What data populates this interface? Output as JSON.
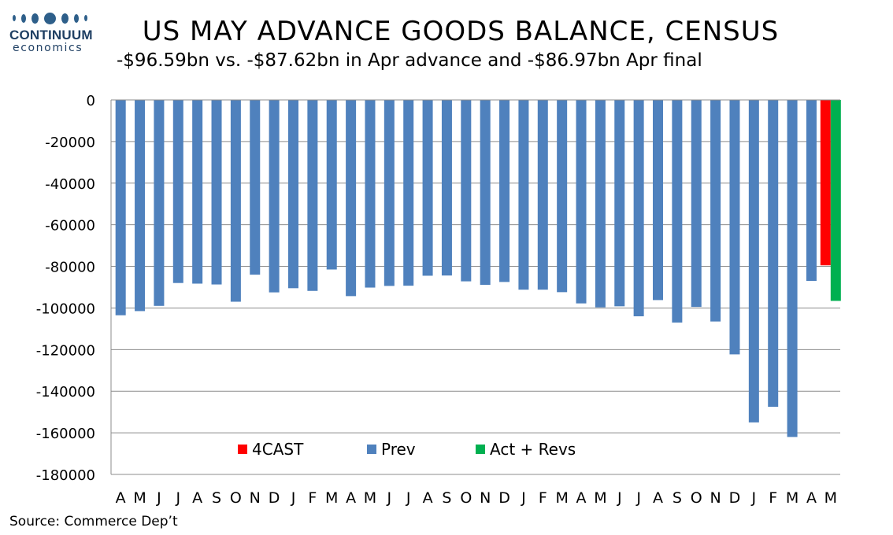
{
  "logo": {
    "name": "CONTINUUM",
    "sub": "economics"
  },
  "chart_data": {
    "type": "bar",
    "title": "US MAY ADVANCE GOODS BALANCE, CENSUS",
    "subtitle": "-$96.59bn vs. -$87.62bn in Apr advance and -$86.97bn Apr final",
    "source": "Source: Commerce Dep’t",
    "ylim": [
      -180000,
      0
    ],
    "yticks": [
      0,
      -20000,
      -40000,
      -60000,
      -80000,
      -100000,
      -120000,
      -140000,
      -160000,
      -180000
    ],
    "grid": true,
    "legend_position": "bottom-center",
    "categories": [
      "A",
      "M",
      "J",
      "J",
      "A",
      "S",
      "O",
      "N",
      "D",
      "J",
      "F",
      "M",
      "A",
      "M",
      "J",
      "J",
      "A",
      "S",
      "O",
      "N",
      "D",
      "J",
      "F",
      "M",
      "A",
      "M",
      "J",
      "J",
      "A",
      "S",
      "O",
      "N",
      "D",
      "J",
      "F",
      "M",
      "A",
      "M"
    ],
    "series": [
      {
        "name": "4CAST",
        "color": "#ff0000",
        "values": [
          null,
          null,
          null,
          null,
          null,
          null,
          null,
          null,
          null,
          null,
          null,
          null,
          null,
          null,
          null,
          null,
          null,
          null,
          null,
          null,
          null,
          null,
          null,
          null,
          null,
          null,
          null,
          null,
          null,
          null,
          null,
          null,
          null,
          null,
          null,
          null,
          null,
          -79500
        ]
      },
      {
        "name": "Prev",
        "color": "#4f81bd",
        "values": [
          -103500,
          -101500,
          -99000,
          -88000,
          -88300,
          -88700,
          -97000,
          -84000,
          -92500,
          -90500,
          -91800,
          -81500,
          -94300,
          -90200,
          -89400,
          -89300,
          -84500,
          -84400,
          -87200,
          -88900,
          -87500,
          -91200,
          -91200,
          -92400,
          -97800,
          -99700,
          -99200,
          -104000,
          -96200,
          -107000,
          -99500,
          -106500,
          -122300,
          -155000,
          -147500,
          -162000,
          -87000,
          null
        ]
      },
      {
        "name": "Act + Revs",
        "color": "#00b050",
        "values": [
          null,
          null,
          null,
          null,
          null,
          null,
          null,
          null,
          null,
          null,
          null,
          null,
          null,
          null,
          null,
          null,
          null,
          null,
          null,
          null,
          null,
          null,
          null,
          null,
          null,
          null,
          null,
          null,
          null,
          null,
          null,
          null,
          null,
          null,
          null,
          null,
          null,
          -96590
        ]
      }
    ]
  }
}
